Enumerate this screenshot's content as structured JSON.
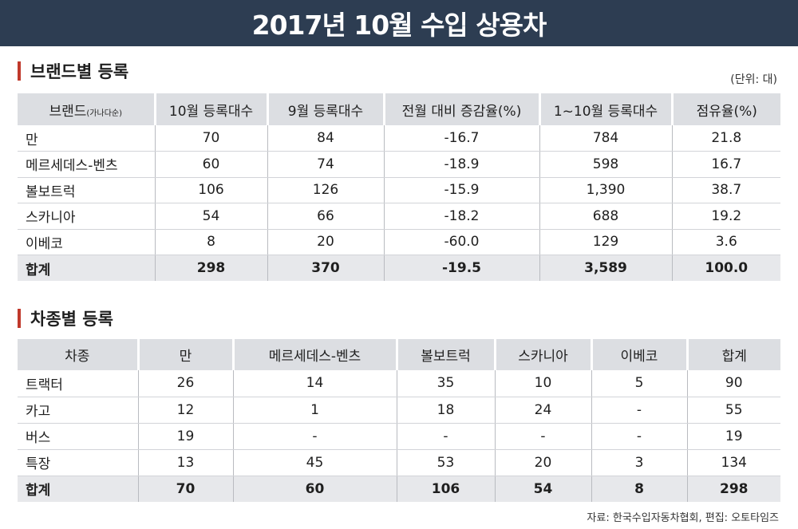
{
  "title": "2017년 10월 수입 상용차",
  "section1": {
    "heading": "브랜드별 등록",
    "unit": "(단위: 대)",
    "headers": {
      "brand": "브랜드",
      "brand_sub": "(가나다순)",
      "oct": "10월 등록대수",
      "sep": "9월 등록대수",
      "mom": "전월 대비 증감율(%)",
      "ytd": "1~10월 등록대수",
      "share": "점유율(%)"
    },
    "rows": [
      [
        "만",
        "70",
        "84",
        "-16.7",
        "784",
        "21.8"
      ],
      [
        "메르세데스-벤츠",
        "60",
        "74",
        "-18.9",
        "598",
        "16.7"
      ],
      [
        "볼보트럭",
        "106",
        "126",
        "-15.9",
        "1,390",
        "38.7"
      ],
      [
        "스카니아",
        "54",
        "66",
        "-18.2",
        "688",
        "19.2"
      ],
      [
        "이베코",
        "8",
        "20",
        "-60.0",
        "129",
        "3.6"
      ]
    ],
    "total": [
      "합계",
      "298",
      "370",
      "-19.5",
      "3,589",
      "100.0"
    ]
  },
  "section2": {
    "heading": "차종별 등록",
    "headers": [
      "차종",
      "만",
      "메르세데스-벤츠",
      "볼보트럭",
      "스카니아",
      "이베코",
      "합계"
    ],
    "rows": [
      [
        "트랙터",
        "26",
        "14",
        "35",
        "10",
        "5",
        "90"
      ],
      [
        "카고",
        "12",
        "1",
        "18",
        "24",
        "-",
        "55"
      ],
      [
        "버스",
        "19",
        "-",
        "-",
        "-",
        "-",
        "19"
      ],
      [
        "특장",
        "13",
        "45",
        "53",
        "20",
        "3",
        "134"
      ]
    ],
    "total": [
      "합계",
      "70",
      "60",
      "106",
      "54",
      "8",
      "298"
    ]
  },
  "source": "자료: 한국수입자동차협회,   편집: 오토타임즈",
  "colors": {
    "title_bg": "#2d3d52",
    "accent": "#c0392b",
    "header_bg": "#dcdee2",
    "total_bg": "#e7e8eb"
  }
}
